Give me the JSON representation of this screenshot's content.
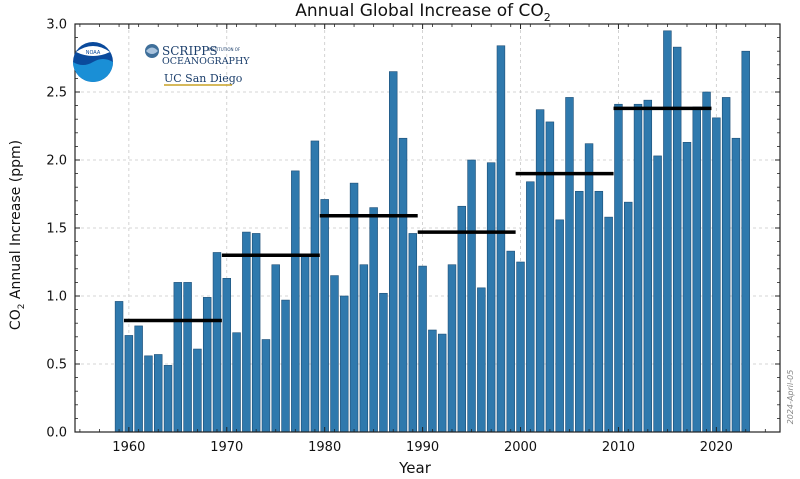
{
  "chart_data": {
    "type": "bar",
    "title": "Annual Global Increase of CO",
    "title_subscript": "2",
    "ylabel_prefix": "CO",
    "ylabel_subscript": "2",
    "ylabel_suffix": " Annual Increase (ppm)",
    "xlabel": "Year",
    "ylim": [
      0,
      3.0
    ],
    "xlim": [
      1954.5,
      2026.5
    ],
    "yticks": [
      "0.0",
      "0.5",
      "1.0",
      "1.5",
      "2.0",
      "2.5",
      "3.0"
    ],
    "xticks": [
      "1960",
      "1970",
      "1980",
      "1990",
      "2000",
      "2010",
      "2020"
    ],
    "years": [
      1959,
      1960,
      1961,
      1962,
      1963,
      1964,
      1965,
      1966,
      1967,
      1968,
      1969,
      1970,
      1971,
      1972,
      1973,
      1974,
      1975,
      1976,
      1977,
      1978,
      1979,
      1980,
      1981,
      1982,
      1983,
      1984,
      1985,
      1986,
      1987,
      1988,
      1989,
      1990,
      1991,
      1992,
      1993,
      1994,
      1995,
      1996,
      1997,
      1998,
      1999,
      2000,
      2001,
      2002,
      2003,
      2004,
      2005,
      2006,
      2007,
      2008,
      2009,
      2010,
      2011,
      2012,
      2013,
      2014,
      2015,
      2016,
      2017,
      2018,
      2019,
      2020,
      2021,
      2022,
      2023
    ],
    "values": [
      0.96,
      0.71,
      0.78,
      0.56,
      0.57,
      0.49,
      1.1,
      1.1,
      0.61,
      0.99,
      1.32,
      1.13,
      0.73,
      1.47,
      1.46,
      0.68,
      1.23,
      0.97,
      1.92,
      1.3,
      2.14,
      1.71,
      1.15,
      1.0,
      1.83,
      1.23,
      1.65,
      1.02,
      2.65,
      2.16,
      1.46,
      1.22,
      0.75,
      0.72,
      1.23,
      1.66,
      2.0,
      1.06,
      1.98,
      2.84,
      1.33,
      1.25,
      1.84,
      2.37,
      2.28,
      1.56,
      2.46,
      1.77,
      2.12,
      1.77,
      1.58,
      2.41,
      1.69,
      2.41,
      2.44,
      2.03,
      2.95,
      2.83,
      2.13,
      2.39,
      2.5,
      2.31,
      2.46,
      2.16,
      2.8
    ],
    "decade_means": [
      {
        "start": 1959.5,
        "end": 1969.5,
        "value": 0.82
      },
      {
        "start": 1969.5,
        "end": 1979.5,
        "value": 1.3
      },
      {
        "start": 1979.5,
        "end": 1989.5,
        "value": 1.59
      },
      {
        "start": 1989.5,
        "end": 1999.5,
        "value": 1.47
      },
      {
        "start": 1999.5,
        "end": 2009.5,
        "value": 1.9
      },
      {
        "start": 2009.5,
        "end": 2019.5,
        "value": 2.38
      }
    ],
    "colors": {
      "bar": "#2f79ad",
      "bar_edge": "#1c4d75",
      "mean_line": "#000000"
    },
    "watermark": "2024-April-05",
    "legend": "none"
  },
  "logos": {
    "noaa_label": "NOAA",
    "scripps_line1": "SCRIPPS",
    "scripps_small": "INSTITUTION OF",
    "scripps_line2": "OCEANOGRAPHY",
    "ucsd": "UC San Diego"
  }
}
